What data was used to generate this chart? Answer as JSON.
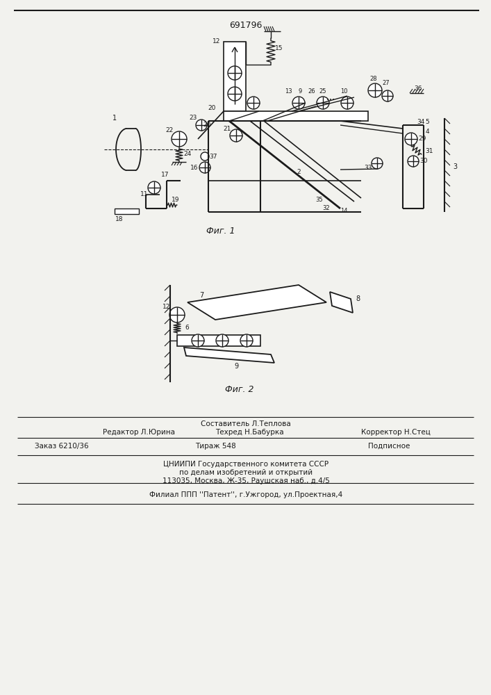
{
  "patent_number": "691796",
  "background_color": "#f2f2ee",
  "line_color": "#1a1a1a",
  "fig1_caption": "Фиг. 1",
  "fig2_caption": "Фиг. 2",
  "footer": {
    "line1_left": "Редактор Л.Юрина",
    "line1_center": "Техред Н.Бабурка",
    "line1_center_top": "Составитель Л.Теплова",
    "line1_right": "Корректор Н.Стец",
    "line2_left": "Заказ 6210/36",
    "line2_center": "Тираж 548",
    "line2_right": "Подписное",
    "line3": "ЦНИИПИ Государственного комитета СССР",
    "line4": "по делам изобретений и открытий",
    "line5": "113035, Москва, Ж-35, Раушская наб., д.4/5",
    "line6": "Филиал ППП ''Патент'', г.Ужгород, ул.Проектная,4"
  }
}
